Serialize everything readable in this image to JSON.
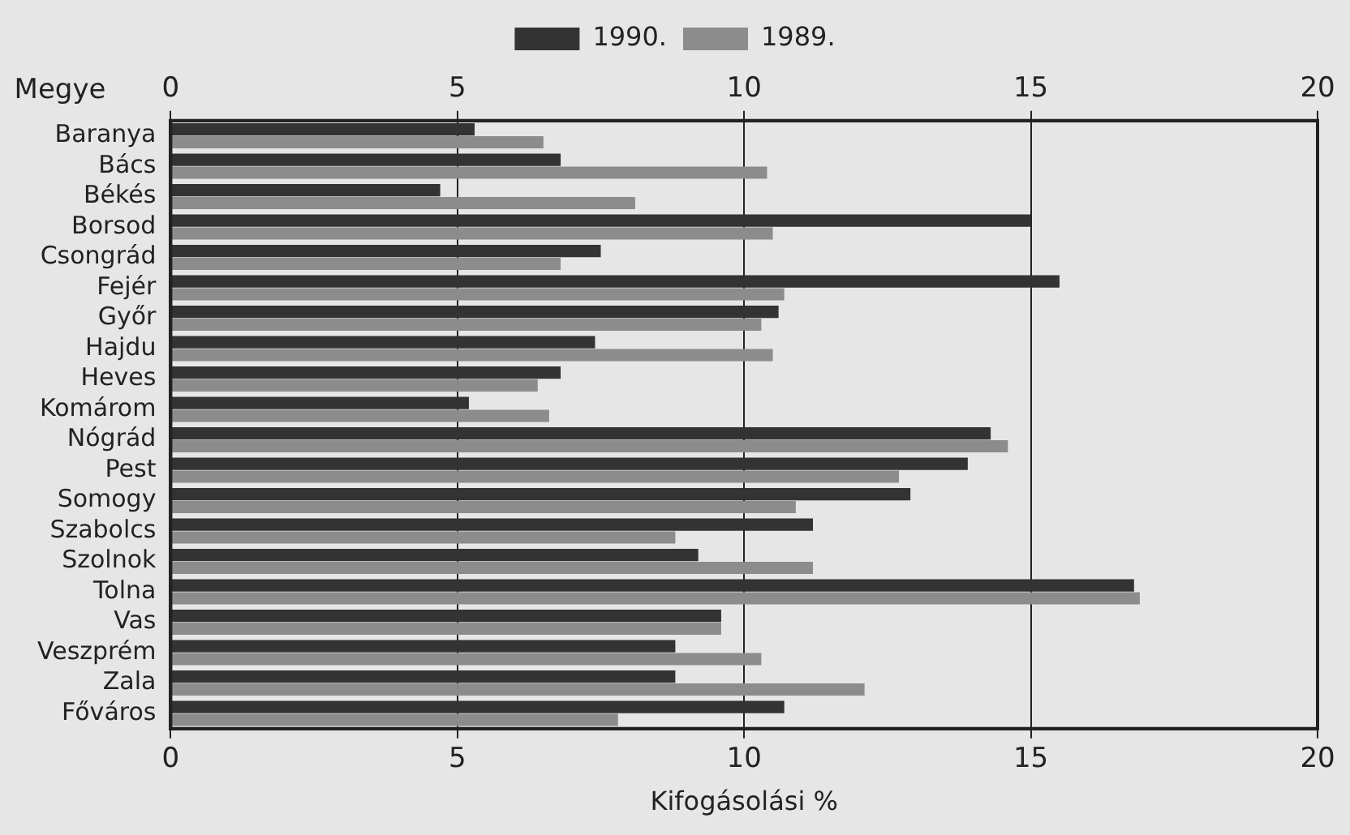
{
  "chart_data": {
    "type": "bar",
    "orientation": "horizontal",
    "xlabel": "Kifogásolási %",
    "ylabel": "Megye",
    "categories": [
      "Baranya",
      "Bács",
      "Békés",
      "Borsod",
      "Csongrád",
      "Fejér",
      "Győr",
      "Hajdu",
      "Heves",
      "Komárom",
      "Nógrád",
      "Pest",
      "Somogy",
      "Szabolcs",
      "Szolnok",
      "Tolna",
      "Vas",
      "Veszprém",
      "Zala",
      "Főváros"
    ],
    "series": [
      {
        "name": "1990.",
        "color": "#333333",
        "values": [
          5.3,
          6.8,
          4.7,
          15.0,
          7.5,
          15.5,
          10.6,
          7.4,
          6.8,
          5.2,
          14.3,
          13.9,
          12.9,
          11.2,
          9.2,
          16.8,
          9.6,
          8.8,
          8.8,
          10.7
        ]
      },
      {
        "name": "1989.",
        "color": "#8c8c8c",
        "values": [
          6.5,
          10.4,
          8.1,
          10.5,
          6.8,
          10.7,
          10.3,
          10.5,
          6.4,
          6.6,
          14.6,
          12.7,
          10.9,
          8.8,
          11.2,
          16.9,
          9.6,
          10.3,
          12.1,
          7.8
        ]
      }
    ],
    "xlim": [
      0,
      20
    ],
    "xticks": [
      0,
      5,
      10,
      15,
      20
    ],
    "x2lim": [
      0,
      20
    ],
    "x2ticks": [
      0,
      5,
      10,
      15,
      20
    ],
    "grid": "x",
    "legend": "top"
  }
}
